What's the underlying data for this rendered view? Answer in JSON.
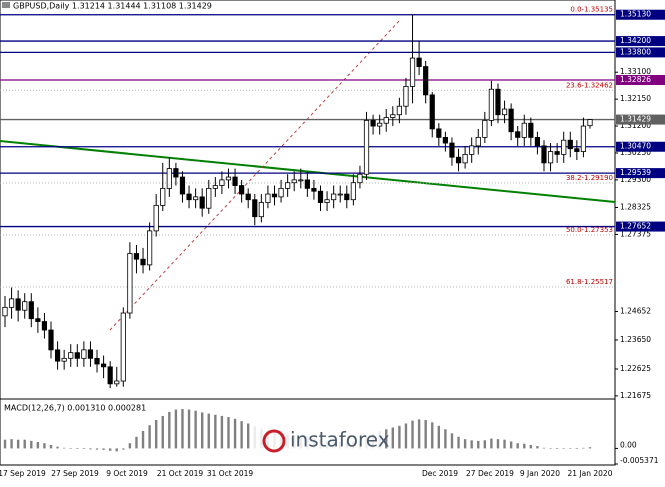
{
  "chart_data": {
    "type": "candlestick",
    "title": "GBPUSD,Daily 1.31214 1.31444 1.31108 1.31429",
    "indicator_label": "MACD(12,26,7) 0.001310 0.000281",
    "watermark": "instaforex",
    "ylim": [
      1.216,
      1.3565
    ],
    "yticks": [
      {
        "value": 1.331,
        "label": "1.33100"
      },
      {
        "value": 1.3215,
        "label": "1.32150"
      },
      {
        "value": 1.312,
        "label": "1.31200"
      },
      {
        "value": 1.3025,
        "label": "1.30250"
      },
      {
        "value": 1.293,
        "label": "1.29300"
      },
      1.28325,
      1.27375,
      1.24652,
      {
        "value": 1.2365,
        "label": "1.23650"
      },
      1.22625,
      1.21675
    ],
    "levels": [
      {
        "value": 1.3513,
        "label": "1.35130",
        "color": "#000080"
      },
      {
        "value": 1.342,
        "label": "1.34200",
        "color": "#000080"
      },
      {
        "value": 1.338,
        "label": "1.33800",
        "color": "#000080"
      },
      {
        "value": 1.32826,
        "label": "1.32826",
        "color": "#800080"
      },
      {
        "value": 1.31429,
        "label": "1.31429",
        "color": "#606060"
      },
      {
        "value": 1.3047,
        "label": "1.30470",
        "color": "#000080"
      },
      {
        "value": 1.29539,
        "label": "1.29539",
        "color": "#000080"
      },
      {
        "value": 1.27652,
        "label": "1.27652",
        "color": "#000080"
      }
    ],
    "fibo": [
      {
        "value": 1.35135,
        "label": "0.0-1.35135"
      },
      {
        "value": 1.32462,
        "label": "23.6-1.32462"
      },
      {
        "value": 1.2919,
        "label": "38.2-1.29190"
      },
      {
        "value": 1.27353,
        "label": "50.0-1.27353"
      },
      {
        "value": 1.25517,
        "label": "61.8-1.25517"
      }
    ],
    "dates": [
      "17 Sep 2019",
      "27 Sep 2019",
      "9 Oct 2019",
      "21 Oct 2019",
      "31 Oct 2019",
      "Dec 2019",
      "27 Dec 2019",
      "9 Jan 2020",
      "21 Jan 2020"
    ],
    "open": [
      1.245,
      1.248,
      1.251,
      1.247,
      1.25,
      1.244,
      1.243,
      1.24,
      1.233,
      1.229,
      1.23,
      1.232,
      1.23,
      1.233,
      1.23,
      1.228,
      1.227,
      1.221,
      1.222,
      1.246,
      1.267,
      1.265,
      1.263,
      1.275,
      1.284,
      1.29,
      1.297,
      1.294,
      1.288,
      1.286,
      1.287,
      1.283,
      1.29,
      1.291,
      1.293,
      1.294,
      1.291,
      1.288,
      1.286,
      1.28,
      1.285,
      1.288,
      1.287,
      1.29,
      1.292,
      1.293,
      1.293,
      1.29,
      1.289,
      1.285,
      1.286,
      1.288,
      1.288,
      1.286,
      1.292,
      1.295,
      1.314,
      1.312,
      1.313,
      1.315,
      1.316,
      1.319,
      1.326,
      1.336,
      1.333,
      1.323,
      1.311,
      1.308,
      1.306,
      1.301,
      1.299,
      1.302,
      1.305,
      1.308,
      1.314,
      1.325,
      1.316,
      1.318,
      1.31,
      1.308,
      1.313,
      1.308,
      1.305,
      1.299,
      1.303,
      1.302,
      1.307,
      1.304,
      1.303,
      1.31214
    ],
    "high": [
      1.252,
      1.255,
      1.254,
      1.253,
      1.253,
      1.248,
      1.246,
      1.243,
      1.236,
      1.233,
      1.235,
      1.235,
      1.236,
      1.236,
      1.233,
      1.231,
      1.229,
      1.227,
      1.248,
      1.271,
      1.27,
      1.269,
      1.278,
      1.288,
      1.299,
      1.301,
      1.299,
      1.296,
      1.291,
      1.29,
      1.29,
      1.293,
      1.294,
      1.296,
      1.297,
      1.297,
      1.293,
      1.29,
      1.288,
      1.288,
      1.291,
      1.291,
      1.293,
      1.295,
      1.296,
      1.297,
      1.296,
      1.293,
      1.291,
      1.289,
      1.291,
      1.291,
      1.291,
      1.295,
      1.298,
      1.317,
      1.316,
      1.316,
      1.318,
      1.319,
      1.322,
      1.329,
      1.3513,
      1.342,
      1.335,
      1.324,
      1.313,
      1.31,
      1.308,
      1.304,
      1.305,
      1.308,
      1.311,
      1.317,
      1.328,
      1.327,
      1.321,
      1.32,
      1.312,
      1.316,
      1.315,
      1.31,
      1.307,
      1.306,
      1.306,
      1.31,
      1.31,
      1.307,
      1.315,
      1.31444
    ],
    "low": [
      1.241,
      1.244,
      1.243,
      1.244,
      1.241,
      1.239,
      1.237,
      1.23,
      1.226,
      1.226,
      1.227,
      1.227,
      1.227,
      1.227,
      1.225,
      1.223,
      1.2195,
      1.22,
      1.22,
      1.244,
      1.26,
      1.26,
      1.261,
      1.273,
      1.282,
      1.287,
      1.291,
      1.285,
      1.283,
      1.283,
      1.28,
      1.281,
      1.287,
      1.288,
      1.29,
      1.288,
      1.285,
      1.283,
      1.277,
      1.278,
      1.283,
      1.284,
      1.285,
      1.287,
      1.289,
      1.29,
      1.287,
      1.286,
      1.282,
      1.282,
      1.283,
      1.285,
      1.283,
      1.284,
      1.29,
      1.293,
      1.309,
      1.309,
      1.31,
      1.312,
      1.313,
      1.316,
      1.32,
      1.33,
      1.32,
      1.308,
      1.305,
      1.303,
      1.298,
      1.296,
      1.297,
      1.299,
      1.302,
      1.306,
      1.312,
      1.313,
      1.313,
      1.307,
      1.305,
      1.305,
      1.305,
      1.302,
      1.296,
      1.296,
      1.299,
      1.299,
      1.301,
      1.3,
      1.301,
      1.31108
    ],
    "close": [
      1.248,
      1.251,
      1.247,
      1.25,
      1.244,
      1.243,
      1.24,
      1.233,
      1.229,
      1.23,
      1.232,
      1.23,
      1.233,
      1.23,
      1.228,
      1.227,
      1.221,
      1.222,
      1.246,
      1.267,
      1.265,
      1.263,
      1.275,
      1.284,
      1.29,
      1.297,
      1.294,
      1.288,
      1.286,
      1.287,
      1.283,
      1.29,
      1.291,
      1.293,
      1.294,
      1.291,
      1.288,
      1.286,
      1.28,
      1.285,
      1.288,
      1.287,
      1.29,
      1.292,
      1.293,
      1.293,
      1.29,
      1.289,
      1.285,
      1.286,
      1.288,
      1.288,
      1.286,
      1.292,
      1.295,
      1.314,
      1.312,
      1.313,
      1.315,
      1.316,
      1.319,
      1.326,
      1.336,
      1.333,
      1.323,
      1.311,
      1.308,
      1.306,
      1.301,
      1.299,
      1.302,
      1.305,
      1.308,
      1.314,
      1.325,
      1.316,
      1.318,
      1.31,
      1.308,
      1.313,
      1.308,
      1.305,
      1.299,
      1.303,
      1.302,
      1.307,
      1.304,
      1.303,
      1.312,
      1.31429
    ],
    "macd": {
      "ylim": [
        -0.005371,
        0.016
      ],
      "yticks": [
        {
          "value": 0,
          "label": "0.00"
        },
        -0.005371
      ],
      "values": [
        0.003,
        0.0032,
        0.003,
        0.003,
        0.0026,
        0.0022,
        0.0018,
        0.0012,
        0.0006,
        0.0002,
        0.0,
        -0.0002,
        -0.0002,
        -0.0003,
        -0.0004,
        -0.0005,
        -0.0008,
        -0.001,
        -0.0004,
        0.0018,
        0.004,
        0.006,
        0.008,
        0.0098,
        0.0112,
        0.0126,
        0.0134,
        0.0136,
        0.0134,
        0.013,
        0.0124,
        0.012,
        0.0116,
        0.0112,
        0.0108,
        0.0102,
        0.0094,
        0.0086,
        0.0076,
        0.0068,
        0.0062,
        0.0056,
        0.0052,
        0.0048,
        0.0046,
        0.0044,
        0.004,
        0.0036,
        0.003,
        0.0026,
        0.0024,
        0.0022,
        0.002,
        0.0022,
        0.0026,
        0.004,
        0.0052,
        0.006,
        0.0066,
        0.0072,
        0.0078,
        0.0086,
        0.0096,
        0.01,
        0.0098,
        0.009,
        0.0078,
        0.0066,
        0.0052,
        0.004,
        0.0032,
        0.0028,
        0.0026,
        0.0028,
        0.0034,
        0.0032,
        0.003,
        0.0024,
        0.0018,
        0.0016,
        0.0012,
        0.0008,
        0.0002,
        0.0,
        -0.0002,
        0.0,
        0.0,
        -0.0002,
        0.0002,
        0.0004
      ]
    }
  }
}
